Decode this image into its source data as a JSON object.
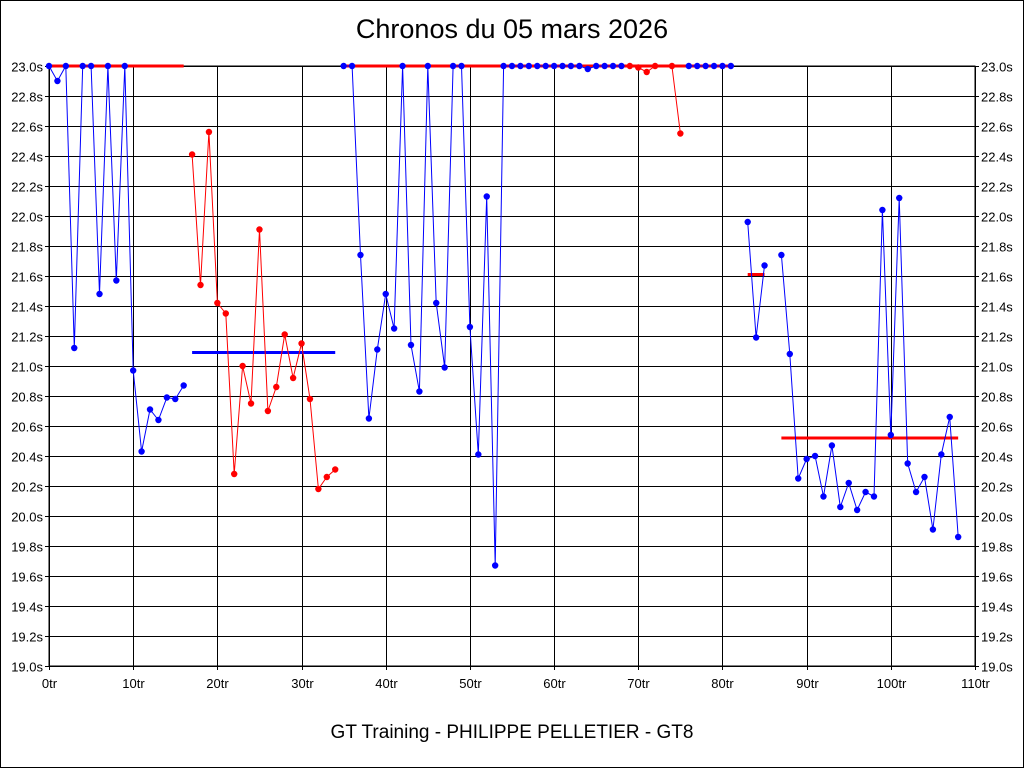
{
  "chart_data": {
    "type": "line",
    "title": "Chronos du 05 mars 2026",
    "footer": "GT Training - PHILIPPE PELLETIER - GT8",
    "xlabel": "",
    "ylabel": "",
    "xlim": [
      0,
      110
    ],
    "ylim": [
      19.0,
      23.0
    ],
    "grid": true,
    "x_ticks": [
      0,
      10,
      20,
      30,
      40,
      50,
      60,
      70,
      80,
      90,
      100,
      110
    ],
    "x_tick_labels": [
      "0tr",
      "10tr",
      "20tr",
      "30tr",
      "40tr",
      "50tr",
      "60tr",
      "70tr",
      "80tr",
      "90tr",
      "100tr",
      "110tr"
    ],
    "y_ticks": [
      19.0,
      19.2,
      19.4,
      19.6,
      19.8,
      20.0,
      20.2,
      20.4,
      20.6,
      20.8,
      21.0,
      21.2,
      21.4,
      21.6,
      21.8,
      22.0,
      22.2,
      22.4,
      22.6,
      22.8,
      23.0
    ],
    "y_tick_labels": [
      "19.0s",
      "19.2s",
      "19.4s",
      "19.6s",
      "19.8s",
      "20.0s",
      "20.2s",
      "20.4s",
      "20.6s",
      "20.8s",
      "21.0s",
      "21.2s",
      "21.4s",
      "21.6s",
      "21.8s",
      "22.0s",
      "22.2s",
      "22.4s",
      "22.6s",
      "22.8s",
      "23.0s"
    ],
    "series": [
      {
        "color": "#0000ff",
        "x": [
          0,
          1,
          2,
          3,
          4,
          5,
          6,
          7,
          8,
          9,
          10,
          11,
          12,
          13,
          14,
          15,
          16
        ],
        "y": [
          23.0,
          22.9,
          23.0,
          21.12,
          23.0,
          23.0,
          21.48,
          23.0,
          21.57,
          23.0,
          20.97,
          20.43,
          20.71,
          20.64,
          20.79,
          20.78,
          20.87
        ]
      },
      {
        "color": "#ff0000",
        "x": [
          17,
          18,
          19,
          20,
          21,
          22,
          23,
          24,
          25,
          26,
          27,
          28,
          29,
          30,
          31,
          32,
          33,
          34
        ],
        "y": [
          22.41,
          21.54,
          22.56,
          21.42,
          21.35,
          20.28,
          21.0,
          20.75,
          21.91,
          20.7,
          20.86,
          21.21,
          20.92,
          21.15,
          20.78,
          20.18,
          20.26,
          20.31
        ]
      },
      {
        "color": "#0000ff",
        "x": [
          35,
          36,
          37,
          38,
          39,
          40,
          41,
          42,
          43,
          44,
          45,
          46,
          47,
          48,
          49,
          50,
          51,
          52,
          53,
          54,
          55,
          56,
          57
        ],
        "y": [
          23.0,
          23.0,
          21.74,
          20.65,
          21.11,
          21.48,
          21.25,
          23.0,
          21.14,
          20.83,
          23.0,
          21.42,
          20.99,
          23.0,
          23.0,
          21.26,
          20.41,
          22.13,
          19.67,
          23.0,
          23.0,
          23.0,
          23.0
        ]
      },
      {
        "color": "#0000ff",
        "x": [
          58,
          59,
          60,
          61,
          62,
          63,
          64,
          65,
          66,
          67,
          68
        ],
        "y": [
          23.0,
          23.0,
          23.0,
          23.0,
          23.0,
          23.0,
          22.98,
          23.0,
          23.0,
          23.0,
          23.0
        ]
      },
      {
        "color": "#ff0000",
        "x": [
          69,
          70,
          71,
          72
        ],
        "y": [
          23.0,
          22.99,
          22.96,
          23.0
        ]
      },
      {
        "color": "#ff0000",
        "x": [
          74,
          75
        ],
        "y": [
          23.0,
          22.55
        ]
      },
      {
        "color": "#0000ff",
        "x": [
          76,
          77,
          78,
          79,
          80,
          81
        ],
        "y": [
          23.0,
          23.0,
          23.0,
          23.0,
          23.0,
          23.0
        ]
      },
      {
        "color": "#0000ff",
        "x": [
          83,
          84,
          85
        ],
        "y": [
          21.96,
          21.19,
          21.67
        ]
      },
      {
        "color": "#0000ff",
        "x": [
          87,
          88,
          89,
          90,
          91,
          92,
          93,
          94,
          95,
          96,
          97,
          98,
          99,
          100,
          101,
          102,
          103,
          104,
          105,
          106,
          107,
          108
        ],
        "y": [
          21.74,
          21.08,
          20.25,
          20.38,
          20.4,
          20.13,
          20.47,
          20.06,
          20.22,
          20.04,
          20.16,
          20.13,
          22.04,
          20.54,
          22.12,
          20.35,
          20.16,
          20.26,
          19.91,
          20.41,
          20.66,
          19.86
        ]
      }
    ],
    "average_lines": [
      {
        "color": "#ff0000",
        "x": [
          0,
          16
        ],
        "y": 23.0
      },
      {
        "color": "#0000ff",
        "x": [
          17,
          34
        ],
        "y": 21.09
      },
      {
        "color": "#ff0000",
        "x": [
          35,
          81
        ],
        "y": 23.0
      },
      {
        "color": "#ff0000",
        "x": [
          83,
          85
        ],
        "y": 21.61
      },
      {
        "color": "#ff0000",
        "x": [
          87,
          108
        ],
        "y": 20.52
      }
    ]
  }
}
